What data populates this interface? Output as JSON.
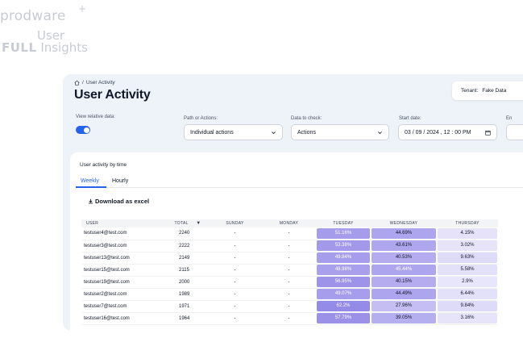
{
  "brand": {
    "line1": "prodware",
    "line2": "User",
    "line3_bold": "FULL",
    "line3_rest": " Insights"
  },
  "breadcrumb": {
    "label": "User Activity"
  },
  "page_title": "User Activity",
  "tenant": {
    "label": "Tenant:",
    "value": "Fake Data"
  },
  "filters": {
    "relative_label": "View relative data:",
    "relative_on": true,
    "path_label": "Path or Actions:",
    "path_value": "Individual actions",
    "check_label": "Data to check:",
    "check_value": "Actions",
    "start_label": "Start date:",
    "start_value": "03 / 09 / 2024 , 12 : 00   PM",
    "end_label": "En"
  },
  "card": {
    "title": "User activity by time",
    "tabs": [
      "Weekly",
      "Hourly"
    ],
    "download_label": "Download as excel"
  },
  "table": {
    "columns": [
      "USER",
      "TOTAL",
      "SUNDAY",
      "MONDAY",
      "TUESDAY",
      "WEDNESDAY",
      "THURSDAY"
    ],
    "rows": [
      {
        "user": "testuser4@test.com",
        "total": "2240",
        "sun": "-",
        "mon": "-",
        "tue": "51.16%",
        "wed": "44.69%",
        "thu": "4.15%"
      },
      {
        "user": "testuser3@test.com",
        "total": "2222",
        "sun": "-",
        "mon": "-",
        "tue": "53.38%",
        "wed": "43.61%",
        "thu": "3.02%"
      },
      {
        "user": "testuser13@test.com",
        "total": "2149",
        "sun": "-",
        "mon": "-",
        "tue": "49.84%",
        "wed": "40.53%",
        "thu": "9.63%"
      },
      {
        "user": "testuser15@test.com",
        "total": "2115",
        "sun": "-",
        "mon": "-",
        "tue": "48.98%",
        "wed": "45.44%",
        "thu": "5.58%"
      },
      {
        "user": "testuser19@test.com",
        "total": "2000",
        "sun": "-",
        "mon": "-",
        "tue": "56.95%",
        "wed": "40.15%",
        "thu": "2.9%"
      },
      {
        "user": "testuser2@test.com",
        "total": "1989",
        "sun": "-",
        "mon": "-",
        "tue": "49.07%",
        "wed": "44.49%",
        "thu": "6.44%"
      },
      {
        "user": "testuser7@test.com",
        "total": "1971",
        "sun": "-",
        "mon": "-",
        "tue": "62.2%",
        "wed": "27.96%",
        "thu": "9.84%"
      },
      {
        "user": "testuser16@test.com",
        "total": "1964",
        "sun": "-",
        "mon": "-",
        "tue": "57.79%",
        "wed": "39.05%",
        "thu": "3.16%"
      }
    ]
  },
  "colors": {
    "accent": "#2563eb",
    "heat_base": "#5b4bdb"
  }
}
